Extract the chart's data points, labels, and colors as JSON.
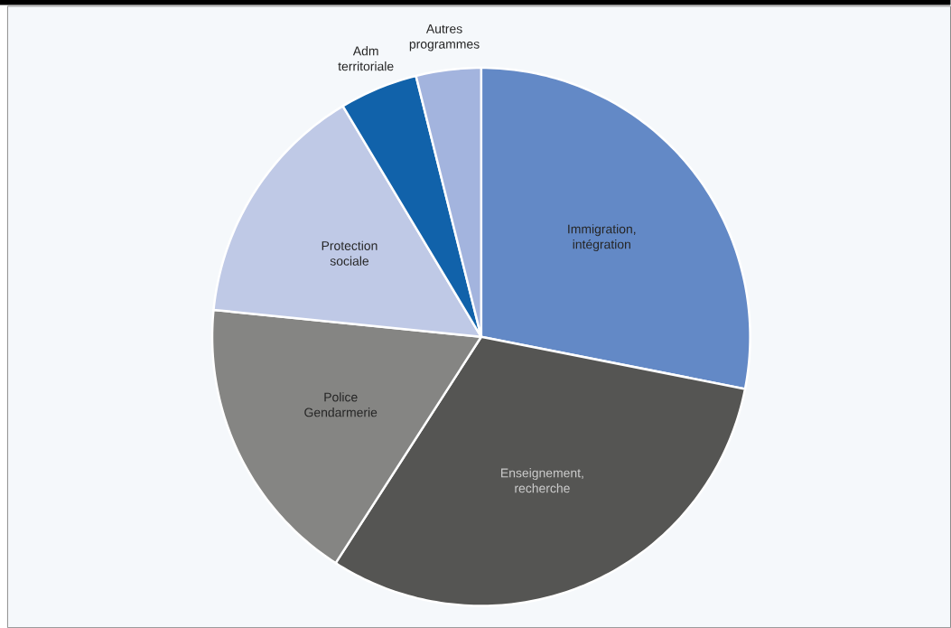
{
  "chart_data": {
    "type": "pie",
    "categories": [
      "Immigration, intégration",
      "Enseignement, recherche",
      "Police Gendarmerie",
      "Protection sociale",
      "Adm territoriale",
      "Autres programmes"
    ],
    "values": [
      28.1,
      31.0,
      17.5,
      14.8,
      4.7,
      3.9
    ],
    "colors": [
      "#6389c6",
      "#555553",
      "#858583",
      "#bfc9e6",
      "#1162aa",
      "#a3b4de"
    ]
  }
}
